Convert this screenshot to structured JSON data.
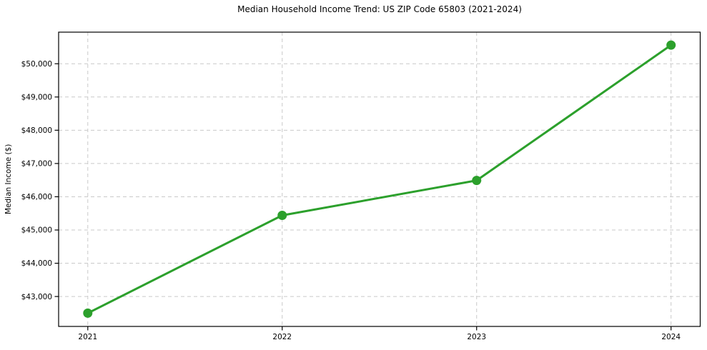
{
  "chart_data": {
    "type": "line",
    "title": "Median Household Income Trend: US ZIP Code 65803 (2021-2024)",
    "xlabel": "",
    "ylabel": "Median Income ($)",
    "x": [
      2021,
      2022,
      2023,
      2024
    ],
    "x_tick_labels": [
      "2021",
      "2022",
      "2023",
      "2024"
    ],
    "series": [
      {
        "name": "Median Household Income",
        "values": [
          42500,
          45440,
          46490,
          50560
        ]
      }
    ],
    "y_ticks": [
      43000,
      44000,
      45000,
      46000,
      47000,
      48000,
      49000,
      50000
    ],
    "y_tick_labels": [
      "$43,000",
      "$44,000",
      "$45,000",
      "$46,000",
      "$47,000",
      "$48,000",
      "$49,000",
      "$50,000"
    ],
    "xlim": [
      2020.85,
      2024.15
    ],
    "ylim": [
      42100,
      50950
    ],
    "grid": true,
    "grid_style": "dashed",
    "legend": false,
    "colors": {
      "line": "#2ca02c",
      "marker": "#2ca02c",
      "grid": "#c9c9c9",
      "spine": "#000000",
      "text": "#000000",
      "background": "#ffffff"
    }
  }
}
